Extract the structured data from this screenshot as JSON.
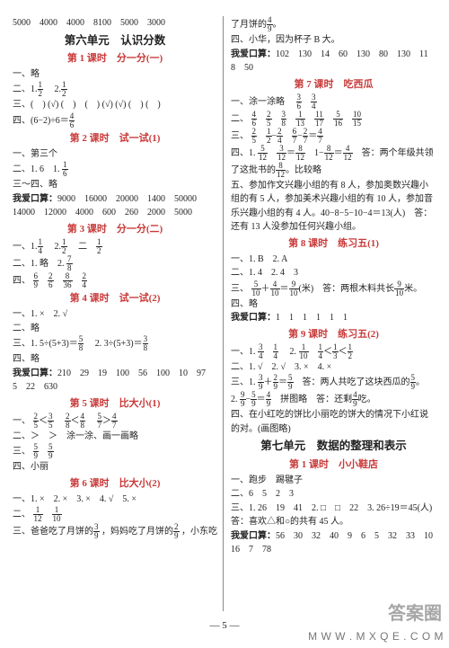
{
  "top_numbers": "5000　4000　4000　8100　5000　3000",
  "unit6": "第六单元　认识分数",
  "L1": {
    "title": "第 1 课时　分一分(一)",
    "r1": "一、略",
    "r2a": "二、1.",
    "r2b": "　2.",
    "r3a": "三、(　) (√) (　)　(　) (√) (√) (　) (　)",
    "r4a": "四、(6−2)÷6＝"
  },
  "L2": {
    "title": "第 2 课时　试一试(1)",
    "r1": "一、第三个",
    "r2a": "二、1. 6　1. ",
    "r3": "三～四、略",
    "kousuan": "我爱口算：",
    "kv": "9000　16000　20000　1400　50000　14000　12000　4000　600　260　2000　5000"
  },
  "L3": {
    "title": "第 3 课时　分一分(二)",
    "r1a": "一、1.",
    "r1b": "　2.",
    "r1c": "　二　",
    "r2": "二、1. 略　2.",
    "r3": "四、"
  },
  "L4": {
    "title": "第 4 课时　试一试(2)",
    "r1": "一、1. ×　2. √",
    "r2": "二、略",
    "r3a": "三、1. 5÷(5+3)＝",
    "r3b": "　2. 3÷(5+3)＝",
    "r4": "四、略",
    "kousuan": "我爱口算：",
    "kv": "210　29　19　100　56　100　10　97　5　22　630"
  },
  "L5": {
    "title": "第 5 课时　比大小(1)",
    "r1": "一、",
    "r2": "二、＞　＞　涂一涂、画一画略",
    "r3": "三、",
    "r4": "四、小丽"
  },
  "L6": {
    "title": "第 6 课时　比大小(2)",
    "r1": "一、1. ×　2. ×　3. ×　4. √　5. ×",
    "r2": "二、",
    "r3a": "三、爸爸吃了月饼的",
    "r3b": "，妈妈吃了月饼的",
    "r3c": "，小东吃"
  },
  "R_top": {
    "r1": "了月饼的",
    "r2": "四、小华，因为杯子 B 大。",
    "kousuan": "我爱口算：",
    "kv": "102　130　14　60　130　80　130　11　8　50"
  },
  "L7": {
    "title": "第 7 课时　吃西瓜",
    "r1": "一、涂一涂略　",
    "r2": "二、",
    "r3": "三、",
    "r4": "四、1.",
    "r4b": "答：两个年级共领了这批书的",
    "r4c": "比较略"
  },
  "R_para": "五、参加作文兴趣小组的有 8 人，参加奥数兴趣小组的有 5 人，参加美术兴趣小组的有 10 人，参加音乐兴趣小组的有 4 人。40−8−5−10−4＝13(人)　答：还有 13 人没参加任何兴趣小组。",
  "L8": {
    "title": "第 8 课时　练习五(1)",
    "r1": "一、1. B　2. A",
    "r2": "二、1. 4　2. 4　3",
    "r3a": "三、",
    "r3b": "(米)　答：两根木料共长",
    "r3c": "米。",
    "r4": "四、略",
    "kousuan": "我爱口算：",
    "kv": "1　1　1　1　1　1"
  },
  "L9": {
    "title": "第 9 课时　练习五(2)",
    "r1": "一、1.",
    "r1b": "　2.",
    "r2": "二、1. √　2. √　3. ×　4. ×",
    "r3a": "三、1.",
    "r3b": "答：两人共吃了这块西瓜的",
    "r3c": "。",
    "r3d": "2.",
    "r3e": "答：还剩",
    "r4": "四、在小红吃的饼比小丽吃的饼大的情况下小红说的对。(画图略)"
  },
  "unit7": "第七单元　数据的整理和表示",
  "U7L1": {
    "title": "第 1 课时　小小鞋店",
    "r1": "一、跑步　踢毽子",
    "r2": "二、6　5　2　3",
    "r3": "三、1. 26　19　41　2. □　□　22　3. 26÷19＝45(人)　答：喜欢△和○的共有 45 人。",
    "kousuan": "我爱口算：",
    "kv": "56　30　32　40　9　6　5　32　33　10　16　7　78"
  },
  "footer": "— 5 —",
  "wm1": "答案圈",
  "wm2": "M W W . M X Q E . C O M"
}
